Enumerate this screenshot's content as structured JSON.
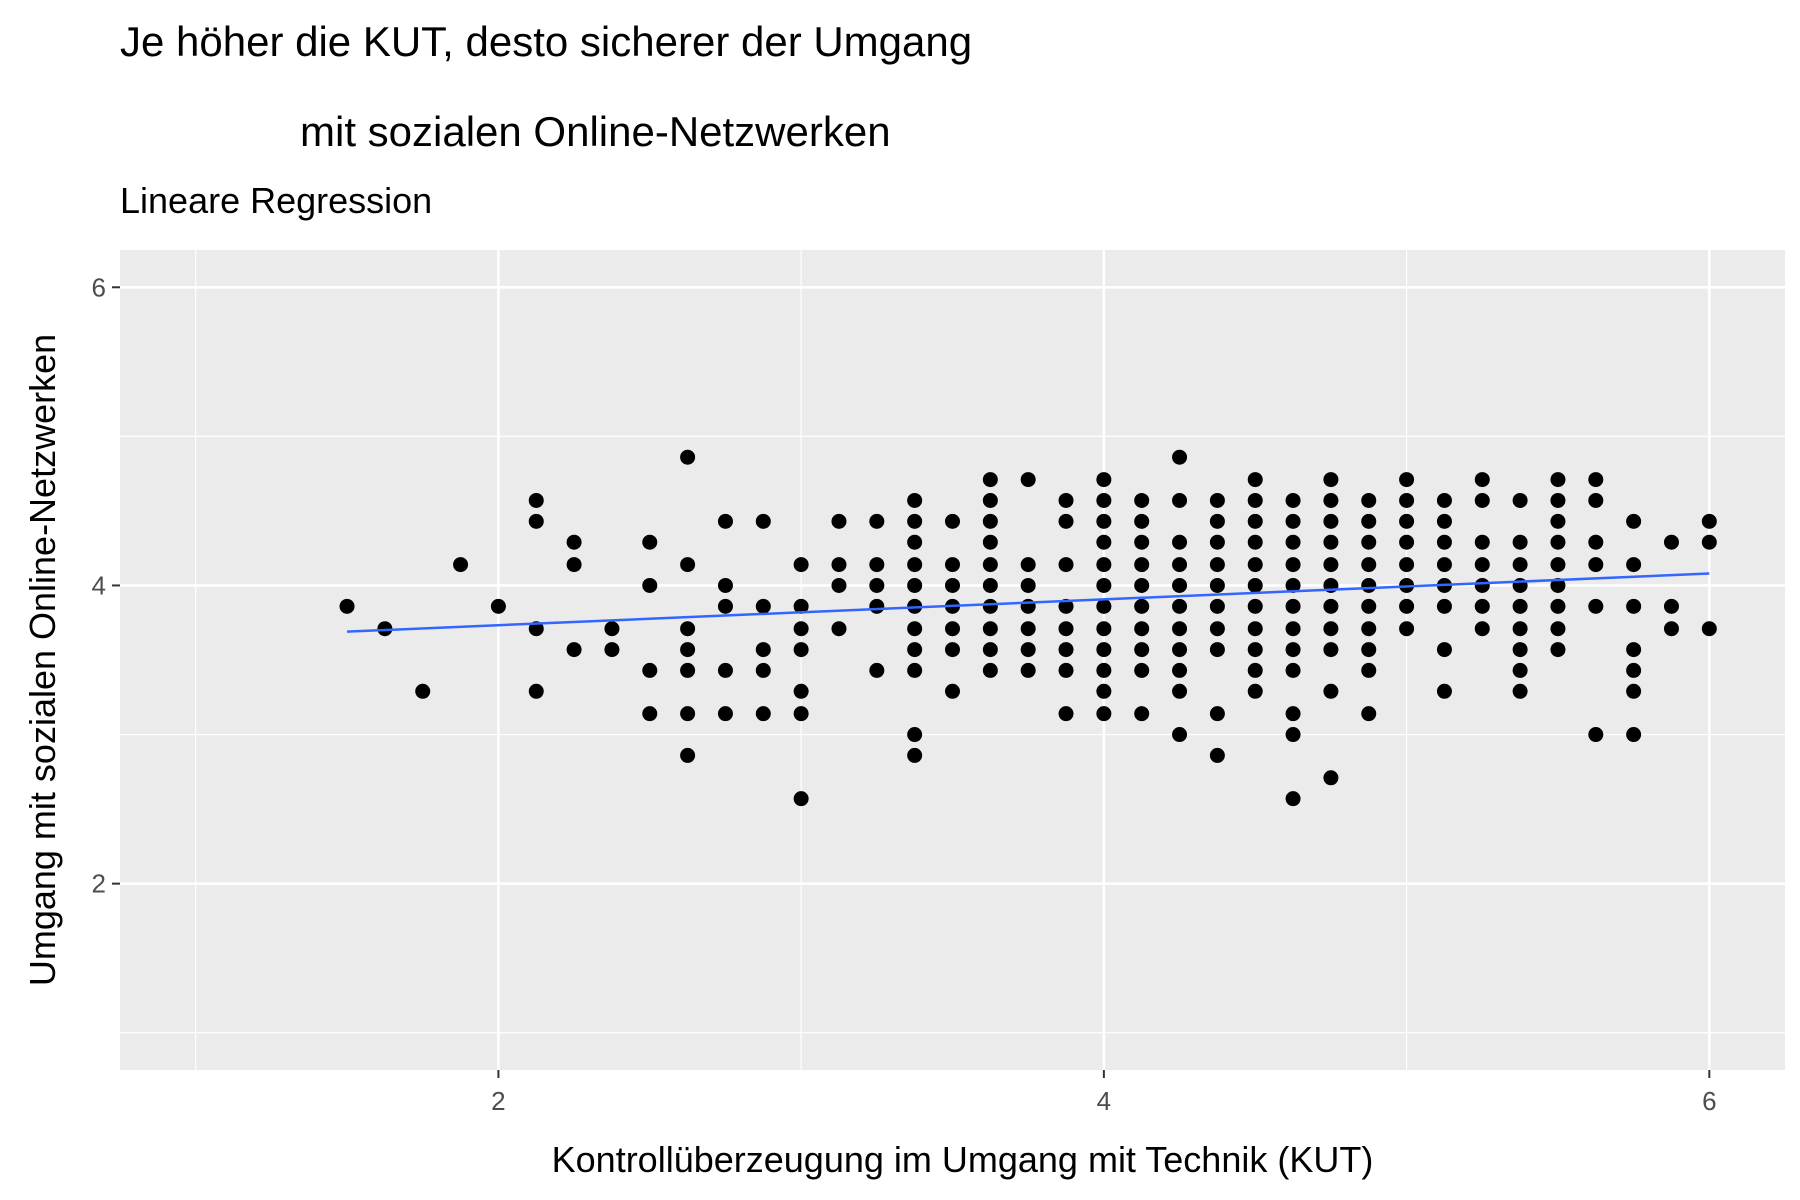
{
  "chart_data": {
    "type": "scatter",
    "title_lines": [
      "Je höher die KUT, desto sicherer der Umgang",
      "mit sozialen Online-Netzwerken"
    ],
    "subtitle": "Lineare Regression",
    "xlabel": "Kontrollüberzeugung im Umgang mit Technik (KUT)",
    "ylabel": "Umgang mit sozialen Online-Netzwerken",
    "xlim": [
      0.75,
      6.25
    ],
    "ylim": [
      0.75,
      6.25
    ],
    "x_ticks": [
      2,
      4,
      6
    ],
    "y_ticks": [
      2,
      4,
      6
    ],
    "grid": true,
    "colors": {
      "panel": "#ebebeb",
      "grid": "#ffffff",
      "points": "#000000",
      "regression": "#3366ff"
    },
    "regression": {
      "x": [
        1.5,
        6.0
      ],
      "y": [
        3.69,
        4.08
      ]
    },
    "points_by_x": [
      [
        1.5,
        [
          3.86
        ]
      ],
      [
        1.625,
        [
          3.71
        ]
      ],
      [
        1.75,
        [
          3.29
        ]
      ],
      [
        1.875,
        [
          4.14
        ]
      ],
      [
        2.0,
        [
          3.86
        ]
      ],
      [
        2.125,
        [
          4.57,
          4.43,
          3.71,
          3.29
        ]
      ],
      [
        2.25,
        [
          4.29,
          4.14,
          3.57
        ]
      ],
      [
        2.375,
        [
          3.71,
          3.57
        ]
      ],
      [
        2.5,
        [
          4.29,
          4.0,
          3.43,
          3.14
        ]
      ],
      [
        2.625,
        [
          4.86,
          4.14,
          3.71,
          3.57,
          3.43,
          3.14,
          2.86
        ]
      ],
      [
        2.75,
        [
          4.43,
          4.0,
          3.86,
          3.43,
          3.14
        ]
      ],
      [
        2.875,
        [
          4.43,
          3.86,
          3.57,
          3.43,
          3.14
        ]
      ],
      [
        3.0,
        [
          4.14,
          3.86,
          3.71,
          3.57,
          3.29,
          3.14,
          2.57
        ]
      ],
      [
        3.125,
        [
          4.43,
          4.14,
          4.0,
          3.71
        ]
      ],
      [
        3.25,
        [
          4.43,
          4.14,
          4.0,
          3.86,
          3.43
        ]
      ],
      [
        3.375,
        [
          4.57,
          4.43,
          4.29,
          4.14,
          4.0,
          3.86,
          3.71,
          3.57,
          3.43,
          3.0,
          2.86
        ]
      ],
      [
        3.5,
        [
          4.43,
          4.14,
          4.0,
          3.86,
          3.71,
          3.57,
          3.29
        ]
      ],
      [
        3.625,
        [
          4.71,
          4.57,
          4.43,
          4.29,
          4.14,
          4.0,
          3.86,
          3.71,
          3.57,
          3.43
        ]
      ],
      [
        3.75,
        [
          4.71,
          4.14,
          4.0,
          3.86,
          3.71,
          3.57,
          3.43
        ]
      ],
      [
        3.875,
        [
          4.57,
          4.43,
          4.14,
          3.86,
          3.71,
          3.57,
          3.43,
          3.14
        ]
      ],
      [
        4.0,
        [
          4.71,
          4.57,
          4.43,
          4.29,
          4.14,
          4.0,
          3.86,
          3.71,
          3.57,
          3.43,
          3.29,
          3.14
        ]
      ],
      [
        4.125,
        [
          4.57,
          4.43,
          4.29,
          4.14,
          4.0,
          3.86,
          3.71,
          3.57,
          3.43,
          3.14
        ]
      ],
      [
        4.25,
        [
          4.86,
          4.57,
          4.29,
          4.14,
          4.0,
          3.86,
          3.71,
          3.57,
          3.43,
          3.29,
          3.0
        ]
      ],
      [
        4.375,
        [
          4.57,
          4.43,
          4.29,
          4.14,
          4.0,
          3.86,
          3.71,
          3.57,
          3.14,
          2.86
        ]
      ],
      [
        4.5,
        [
          4.71,
          4.57,
          4.43,
          4.29,
          4.14,
          4.0,
          3.86,
          3.71,
          3.57,
          3.43,
          3.29
        ]
      ],
      [
        4.625,
        [
          4.57,
          4.43,
          4.29,
          4.14,
          4.0,
          3.86,
          3.71,
          3.57,
          3.43,
          3.14,
          3.0,
          2.57
        ]
      ],
      [
        4.75,
        [
          4.71,
          4.57,
          4.43,
          4.29,
          4.14,
          4.0,
          3.86,
          3.71,
          3.57,
          3.29,
          2.71
        ]
      ],
      [
        4.875,
        [
          4.57,
          4.43,
          4.29,
          4.14,
          4.0,
          3.86,
          3.71,
          3.57,
          3.43,
          3.14
        ]
      ],
      [
        5.0,
        [
          4.71,
          4.57,
          4.43,
          4.29,
          4.14,
          4.0,
          3.86,
          3.71
        ]
      ],
      [
        5.125,
        [
          4.57,
          4.43,
          4.29,
          4.14,
          4.0,
          3.86,
          3.57,
          3.29
        ]
      ],
      [
        5.25,
        [
          4.71,
          4.57,
          4.29,
          4.14,
          4.0,
          3.86,
          3.71
        ]
      ],
      [
        5.375,
        [
          4.57,
          4.29,
          4.14,
          4.0,
          3.86,
          3.71,
          3.57,
          3.43,
          3.29
        ]
      ],
      [
        5.5,
        [
          4.71,
          4.57,
          4.43,
          4.29,
          4.14,
          4.0,
          3.86,
          3.71,
          3.57
        ]
      ],
      [
        5.625,
        [
          4.71,
          4.57,
          4.29,
          4.14,
          3.86,
          3.0
        ]
      ],
      [
        5.75,
        [
          4.43,
          4.14,
          3.86,
          3.57,
          3.43,
          3.29,
          3.0
        ]
      ],
      [
        5.875,
        [
          4.29,
          3.86,
          3.71
        ]
      ],
      [
        6.0,
        [
          4.43,
          4.29,
          3.71
        ]
      ]
    ]
  }
}
